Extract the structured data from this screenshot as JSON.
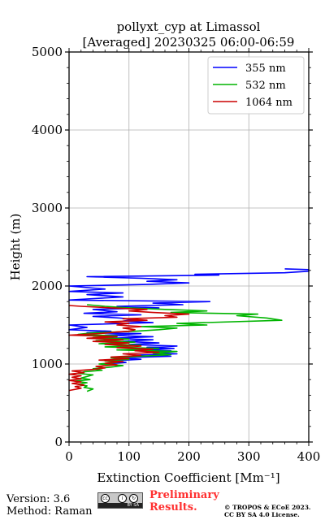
{
  "chart_data": {
    "type": "line",
    "title": "pollyxt_cyp at Limassol",
    "subtitle": "[Averaged] 20230325 06:00-06:59",
    "xlabel": "Extinction Coefficient [Mm⁻¹]",
    "ylabel": "Height (m)",
    "xlim": [
      0,
      400
    ],
    "ylim": [
      0,
      5000
    ],
    "xticks": [
      "0",
      "100",
      "200",
      "300",
      "400"
    ],
    "yticks": [
      "0",
      "1000",
      "2000",
      "3000",
      "4000",
      "5000"
    ],
    "grid": true,
    "legend_position": "top-right",
    "orientation": "profile",
    "series": [
      {
        "name": "355 nm",
        "color": "#0000ff",
        "points": [
          [
            60,
            1000
          ],
          [
            95,
            1020
          ],
          [
            70,
            1040
          ],
          [
            120,
            1060
          ],
          [
            85,
            1080
          ],
          [
            170,
            1100
          ],
          [
            110,
            1115
          ],
          [
            180,
            1130
          ],
          [
            130,
            1150
          ],
          [
            170,
            1170
          ],
          [
            120,
            1190
          ],
          [
            175,
            1200
          ],
          [
            130,
            1215
          ],
          [
            180,
            1230
          ],
          [
            100,
            1250
          ],
          [
            150,
            1270
          ],
          [
            90,
            1290
          ],
          [
            140,
            1310
          ],
          [
            70,
            1330
          ],
          [
            140,
            1350
          ],
          [
            60,
            1370
          ],
          [
            120,
            1390
          ],
          [
            30,
            1400
          ],
          [
            70,
            1420
          ],
          [
            0,
            1440
          ],
          [
            30,
            1470
          ],
          [
            0,
            1500
          ],
          [
            140,
            1530
          ],
          [
            90,
            1550
          ],
          [
            110,
            1570
          ],
          [
            85,
            1590
          ],
          [
            40,
            1610
          ],
          [
            120,
            1630
          ],
          [
            25,
            1650
          ],
          [
            80,
            1670
          ],
          [
            40,
            1700
          ],
          [
            150,
            1720
          ],
          [
            80,
            1740
          ],
          [
            190,
            1760
          ],
          [
            140,
            1780
          ],
          [
            235,
            1800
          ],
          [
            0,
            1820
          ],
          [
            90,
            1860
          ],
          [
            30,
            1890
          ],
          [
            90,
            1910
          ],
          [
            0,
            1930
          ],
          [
            60,
            1960
          ],
          [
            0,
            2000
          ],
          [
            130,
            2020
          ],
          [
            200,
            2040
          ],
          [
            130,
            2060
          ],
          [
            180,
            2080
          ],
          [
            120,
            2100
          ],
          [
            30,
            2120
          ],
          [
            250,
            2140
          ],
          [
            210,
            2150
          ],
          [
            360,
            2170
          ],
          [
            400,
            2190
          ],
          [
            400,
            2210
          ],
          [
            360,
            2220
          ]
        ]
      },
      {
        "name": "532 nm",
        "color": "#00b400",
        "points": [
          [
            30,
            650
          ],
          [
            40,
            680
          ],
          [
            25,
            700
          ],
          [
            30,
            720
          ],
          [
            15,
            740
          ],
          [
            30,
            760
          ],
          [
            10,
            780
          ],
          [
            35,
            800
          ],
          [
            20,
            820
          ],
          [
            30,
            840
          ],
          [
            40,
            860
          ],
          [
            15,
            880
          ],
          [
            25,
            900
          ],
          [
            55,
            920
          ],
          [
            40,
            940
          ],
          [
            70,
            960
          ],
          [
            90,
            980
          ],
          [
            50,
            1000
          ],
          [
            80,
            1020
          ],
          [
            60,
            1040
          ],
          [
            100,
            1060
          ],
          [
            70,
            1080
          ],
          [
            120,
            1100
          ],
          [
            170,
            1120
          ],
          [
            140,
            1140
          ],
          [
            180,
            1160
          ],
          [
            80,
            1180
          ],
          [
            150,
            1200
          ],
          [
            60,
            1220
          ],
          [
            120,
            1240
          ],
          [
            50,
            1260
          ],
          [
            110,
            1280
          ],
          [
            45,
            1300
          ],
          [
            100,
            1320
          ],
          [
            40,
            1340
          ],
          [
            80,
            1360
          ],
          [
            15,
            1380
          ],
          [
            40,
            1400
          ],
          [
            110,
            1420
          ],
          [
            150,
            1440
          ],
          [
            180,
            1460
          ],
          [
            120,
            1480
          ],
          [
            230,
            1500
          ],
          [
            180,
            1520
          ],
          [
            355,
            1560
          ],
          [
            330,
            1590
          ],
          [
            280,
            1620
          ],
          [
            315,
            1640
          ],
          [
            170,
            1660
          ],
          [
            230,
            1680
          ],
          [
            160,
            1700
          ],
          [
            100,
            1720
          ],
          [
            60,
            1740
          ],
          [
            30,
            1760
          ]
        ]
      },
      {
        "name": "1064 nm",
        "color": "#cc0000",
        "points": [
          [
            0,
            660
          ],
          [
            20,
            690
          ],
          [
            10,
            710
          ],
          [
            25,
            730
          ],
          [
            5,
            750
          ],
          [
            20,
            770
          ],
          [
            0,
            790
          ],
          [
            20,
            810
          ],
          [
            5,
            830
          ],
          [
            20,
            850
          ],
          [
            0,
            870
          ],
          [
            25,
            890
          ],
          [
            5,
            910
          ],
          [
            40,
            930
          ],
          [
            60,
            950
          ],
          [
            45,
            970
          ],
          [
            80,
            990
          ],
          [
            60,
            1010
          ],
          [
            90,
            1030
          ],
          [
            50,
            1050
          ],
          [
            100,
            1070
          ],
          [
            70,
            1090
          ],
          [
            120,
            1110
          ],
          [
            90,
            1130
          ],
          [
            150,
            1150
          ],
          [
            110,
            1170
          ],
          [
            140,
            1190
          ],
          [
            80,
            1210
          ],
          [
            120,
            1230
          ],
          [
            60,
            1250
          ],
          [
            100,
            1270
          ],
          [
            40,
            1290
          ],
          [
            90,
            1310
          ],
          [
            30,
            1330
          ],
          [
            80,
            1350
          ],
          [
            0,
            1370
          ],
          [
            50,
            1390
          ],
          [
            80,
            1410
          ],
          [
            100,
            1420
          ],
          [
            110,
            1440
          ],
          [
            90,
            1460
          ],
          [
            120,
            1480
          ],
          [
            80,
            1500
          ],
          [
            100,
            1520
          ],
          [
            60,
            1540
          ],
          [
            130,
            1560
          ],
          [
            90,
            1580
          ],
          [
            180,
            1600
          ],
          [
            160,
            1620
          ],
          [
            200,
            1640
          ],
          [
            140,
            1660
          ],
          [
            100,
            1680
          ],
          [
            130,
            1700
          ],
          [
            70,
            1720
          ],
          [
            20,
            1740
          ],
          [
            0,
            1750
          ]
        ]
      }
    ]
  },
  "footer": {
    "version": "Version: 3.6",
    "method": "Method: Raman",
    "preliminary_line1": "Preliminary",
    "preliminary_line2": "Results.",
    "copyright_line1": "© TROPOS & ECoE 2023.",
    "copyright_line2": "CC BY SA 4.0 License."
  },
  "license_badge": {
    "icons": [
      "cc",
      "by",
      "sa"
    ],
    "label": "BY SA"
  }
}
